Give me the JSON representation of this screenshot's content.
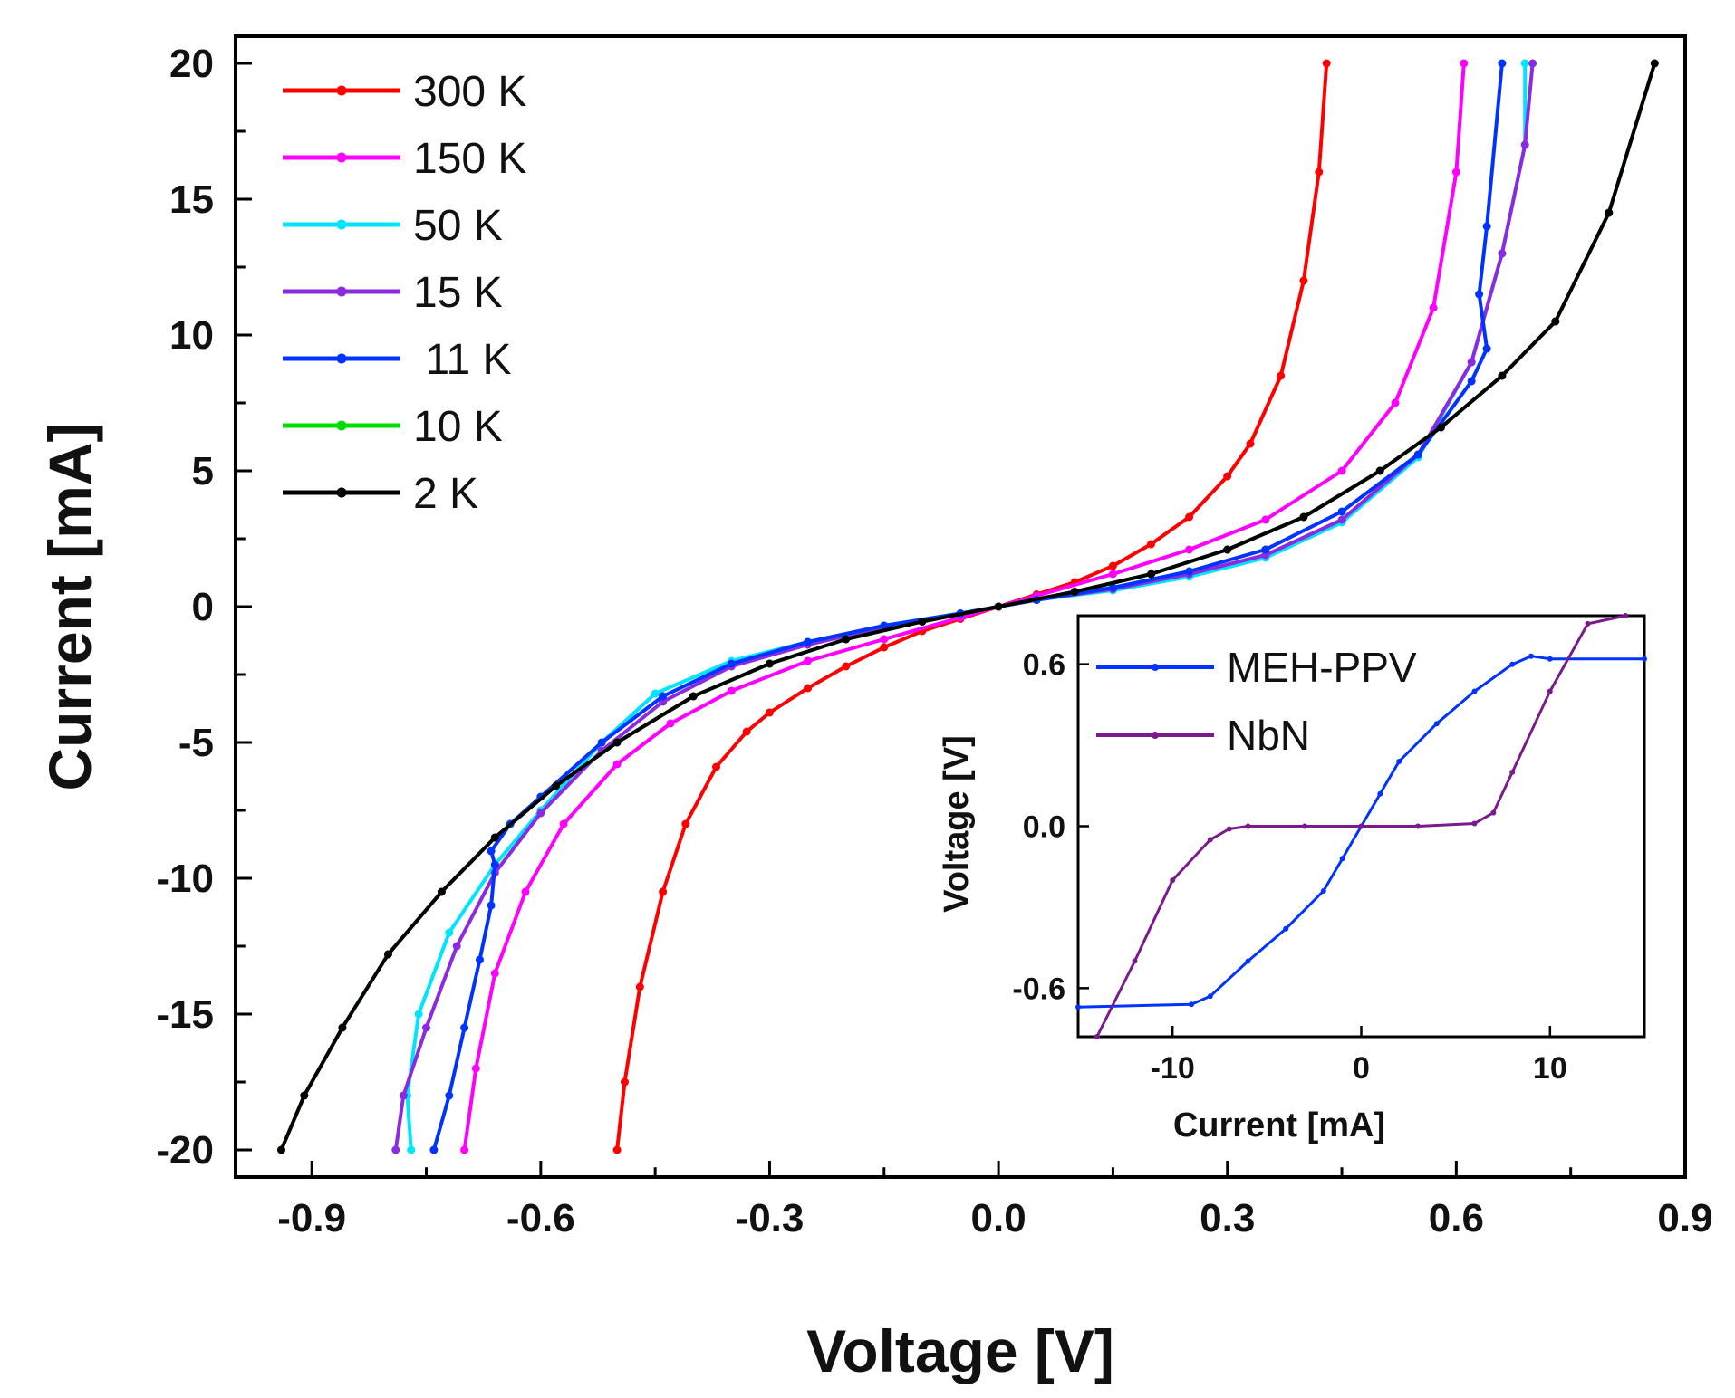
{
  "chart_data": [
    {
      "type": "line",
      "title": "",
      "xlabel": "Voltage [V]",
      "ylabel": "Current [mA]",
      "xlim": [
        -1.0,
        0.9
      ],
      "ylim": [
        -21,
        21
      ],
      "xticks": [
        -0.9,
        -0.6,
        -0.3,
        0.0,
        0.3,
        0.6,
        0.9
      ],
      "xtick_labels": [
        "-0.9",
        "-0.6",
        "-0.3",
        "0.0",
        "0.3",
        "0.6",
        "0.9"
      ],
      "yticks": [
        -20,
        -15,
        -10,
        -5,
        0,
        5,
        10,
        15,
        20
      ],
      "ytick_labels": [
        "-20",
        "-15",
        "-10",
        "-5",
        "0",
        "5",
        "10",
        "15",
        "20"
      ],
      "legend_position": "top-left",
      "series": [
        {
          "name": "300 K",
          "color": "#ff0000",
          "x": [
            -0.5,
            -0.49,
            -0.47,
            -0.44,
            -0.41,
            -0.37,
            -0.33,
            -0.3,
            -0.25,
            -0.2,
            -0.15,
            -0.1,
            -0.05,
            0,
            0.05,
            0.1,
            0.15,
            0.2,
            0.25,
            0.3,
            0.33,
            0.37,
            0.4,
            0.42,
            0.43
          ],
          "y": [
            -20,
            -17.5,
            -14,
            -10.5,
            -8,
            -5.9,
            -4.6,
            -3.9,
            -3,
            -2.2,
            -1.5,
            -0.9,
            -0.45,
            0,
            0.45,
            0.9,
            1.5,
            2.3,
            3.3,
            4.8,
            6,
            8.5,
            12,
            16,
            20
          ]
        },
        {
          "name": "150 K",
          "color": "#ff00ff",
          "x": [
            -0.7,
            -0.685,
            -0.66,
            -0.62,
            -0.57,
            -0.5,
            -0.43,
            -0.35,
            -0.25,
            -0.15,
            -0.05,
            0,
            0.05,
            0.15,
            0.25,
            0.35,
            0.45,
            0.52,
            0.57,
            0.6,
            0.61
          ],
          "y": [
            -20,
            -17,
            -13.5,
            -10.5,
            -8,
            -5.8,
            -4.3,
            -3.1,
            -2,
            -1.2,
            -0.4,
            0,
            0.4,
            1.2,
            2.1,
            3.2,
            5,
            7.5,
            11,
            16,
            20
          ]
        },
        {
          "name": "50 K",
          "color": "#00e5ff",
          "x": [
            -0.77,
            -0.775,
            -0.76,
            -0.72,
            -0.66,
            -0.6,
            -0.52,
            -0.45,
            -0.35,
            -0.25,
            -0.15,
            -0.05,
            0,
            0.05,
            0.15,
            0.25,
            0.35,
            0.45,
            0.55,
            0.62,
            0.66,
            0.69,
            0.69
          ],
          "y": [
            -20,
            -18,
            -15,
            -12,
            -9.5,
            -7.5,
            -5,
            -3.2,
            -2,
            -1.3,
            -0.7,
            -0.25,
            0,
            0.25,
            0.6,
            1.1,
            1.8,
            3.1,
            5.5,
            9,
            13,
            17,
            20
          ]
        },
        {
          "name": "15 K",
          "color": "#8a2be2",
          "x": [
            -0.79,
            -0.78,
            -0.75,
            -0.71,
            -0.66,
            -0.6,
            -0.52,
            -0.44,
            -0.35,
            -0.25,
            -0.15,
            -0.05,
            0,
            0.05,
            0.15,
            0.25,
            0.35,
            0.45,
            0.55,
            0.62,
            0.66,
            0.69,
            0.7
          ],
          "y": [
            -20,
            -18,
            -15.5,
            -12.5,
            -9.8,
            -7.6,
            -5.3,
            -3.5,
            -2.2,
            -1.4,
            -0.75,
            -0.25,
            0,
            0.25,
            0.65,
            1.2,
            1.9,
            3.2,
            5.6,
            9,
            13,
            17,
            20
          ]
        },
        {
          "name": " 11 K",
          "color": "#0033ff",
          "x": [
            -0.74,
            -0.72,
            -0.7,
            -0.68,
            -0.665,
            -0.66,
            -0.665,
            -0.64,
            -0.6,
            -0.52,
            -0.44,
            -0.35,
            -0.25,
            -0.15,
            -0.05,
            0,
            0.05,
            0.15,
            0.25,
            0.35,
            0.45,
            0.55,
            0.62,
            0.64,
            0.63,
            0.64,
            0.66
          ],
          "y": [
            -20,
            -18,
            -15.5,
            -13,
            -11,
            -9.5,
            -9,
            -8,
            -7,
            -5,
            -3.3,
            -2.1,
            -1.3,
            -0.7,
            -0.25,
            0,
            0.25,
            0.7,
            1.3,
            2.1,
            3.5,
            5.6,
            8.3,
            9.5,
            11.5,
            14,
            20
          ]
        },
        {
          "name": "10 K",
          "color": "#00dd00",
          "x": [
            -0.94,
            -0.91,
            -0.86,
            -0.8,
            -0.73,
            -0.66,
            -0.58,
            -0.5,
            -0.4,
            -0.3,
            -0.2,
            -0.1,
            0,
            0.1,
            0.2,
            0.3,
            0.4,
            0.5,
            0.58,
            0.66,
            0.73,
            0.8,
            0.86
          ],
          "y": [
            -20,
            -18,
            -15.5,
            -12.8,
            -10.5,
            -8.5,
            -6.6,
            -5,
            -3.3,
            -2.1,
            -1.2,
            -0.55,
            0,
            0.55,
            1.2,
            2.1,
            3.3,
            5,
            6.6,
            8.5,
            10.5,
            14.5,
            20
          ]
        },
        {
          "name": "2 K",
          "color": "#000000",
          "x": [
            -0.94,
            -0.91,
            -0.86,
            -0.8,
            -0.73,
            -0.66,
            -0.58,
            -0.5,
            -0.4,
            -0.3,
            -0.2,
            -0.1,
            0,
            0.1,
            0.2,
            0.3,
            0.4,
            0.5,
            0.58,
            0.66,
            0.73,
            0.8,
            0.86
          ],
          "y": [
            -20,
            -18,
            -15.5,
            -12.8,
            -10.5,
            -8.5,
            -6.6,
            -5,
            -3.3,
            -2.1,
            -1.2,
            -0.55,
            0,
            0.55,
            1.2,
            2.1,
            3.3,
            5,
            6.6,
            8.5,
            10.5,
            14.5,
            20
          ]
        }
      ]
    },
    {
      "type": "line",
      "title": "",
      "xlabel": "Current [mA]",
      "ylabel": "Voltage [V]",
      "xlim": [
        -15,
        15
      ],
      "ylim": [
        -0.78,
        0.78
      ],
      "xticks": [
        -10,
        0,
        10
      ],
      "xtick_labels": [
        "-10",
        "0",
        "10"
      ],
      "yticks": [
        0.6,
        0.0,
        -0.6
      ],
      "ytick_labels": [
        "0.6",
        "0.0",
        "-0.6"
      ],
      "legend_position": "top-left",
      "series": [
        {
          "name": "MEH-PPV",
          "color": "#0033ff",
          "x": [
            -15,
            -9,
            -8,
            -6,
            -4,
            -2,
            -1,
            0,
            1,
            2,
            4,
            6,
            8,
            9,
            10,
            15
          ],
          "y": [
            -0.67,
            -0.66,
            -0.63,
            -0.5,
            -0.38,
            -0.24,
            -0.12,
            0,
            0.12,
            0.24,
            0.38,
            0.5,
            0.6,
            0.63,
            0.62,
            0.62
          ]
        },
        {
          "name": "NbN",
          "color": "#7a1a8c",
          "x": [
            -14,
            -12,
            -10,
            -8,
            -7,
            -6,
            -3,
            0,
            3,
            6,
            7,
            8,
            10,
            12,
            14
          ],
          "y": [
            -0.78,
            -0.5,
            -0.2,
            -0.05,
            -0.01,
            0,
            0,
            0,
            0,
            0.01,
            0.05,
            0.2,
            0.5,
            0.75,
            0.78
          ]
        }
      ]
    }
  ]
}
